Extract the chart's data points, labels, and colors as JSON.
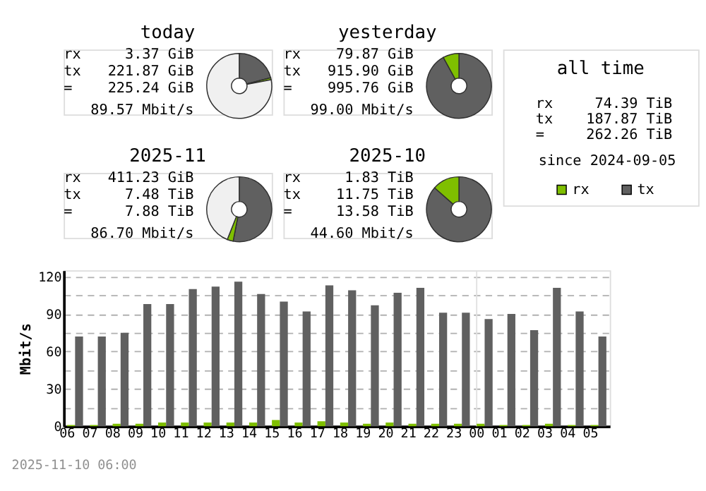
{
  "chart_data": [
    {
      "type": "donut",
      "title": "today",
      "categories": [
        null,
        null,
        null
      ],
      "values": [
        21,
        1,
        78
      ],
      "colors": [
        "#606060",
        "#7fbf00",
        "#f0f0f0"
      ],
      "annotations": [
        "rx",
        "3.37 GiB",
        "tx",
        "221.87 GiB",
        "=",
        "225.24 GiB",
        "89.57 Mbit/s"
      ]
    },
    {
      "type": "donut",
      "title": "2025-11",
      "categories": [
        null,
        null,
        null
      ],
      "values": [
        53,
        3,
        44
      ],
      "colors": [
        "#606060",
        "#7fbf00",
        "#f0f0f0"
      ],
      "annotations": [
        "rx",
        "411.23 GiB",
        "tx",
        "7.48 TiB",
        "=",
        "7.88 TiB",
        "86.70 Mbit/s"
      ]
    },
    {
      "type": "donut",
      "title": "yesterday",
      "categories": [
        null,
        null
      ],
      "values": [
        92,
        8
      ],
      "colors": [
        "#606060",
        "#7fbf00"
      ],
      "annotations": [
        "rx",
        "79.87 GiB",
        "tx",
        "915.90 GiB",
        "=",
        "995.76 GiB",
        "99.00 Mbit/s"
      ]
    },
    {
      "type": "donut",
      "title": "2025-10",
      "categories": [
        null,
        null
      ],
      "values": [
        86.5,
        13.5
      ],
      "colors": [
        "#606060",
        "#7fbf00"
      ],
      "annotations": [
        "rx",
        "1.83 TiB",
        "tx",
        "11.75 TiB",
        "=",
        "13.58 TiB",
        "44.60 Mbit/s"
      ]
    },
    {
      "type": "other",
      "title": "all time",
      "annotations": [
        "rx",
        "74.39 TiB",
        "tx",
        "187.87 TiB",
        "=",
        "262.26 TiB",
        "since 2024-09-05"
      ]
    },
    {
      "type": "bar",
      "ylabel": "Mbit/s",
      "categories": [
        "06",
        "07",
        "08",
        "09",
        "10",
        "11",
        "12",
        "13",
        "14",
        "15",
        "16",
        "17",
        "18",
        "19",
        "20",
        "21",
        "22",
        "23",
        "00",
        "01",
        "02",
        "03",
        "04",
        "05"
      ],
      "series": [
        {
          "name": "rx",
          "color": "#7fbf00",
          "values": [
            1,
            1,
            2,
            2,
            3,
            3,
            3,
            3,
            3,
            5,
            3,
            4,
            3,
            2,
            3,
            2,
            2,
            2,
            2,
            1,
            1,
            2,
            1,
            1
          ]
        },
        {
          "name": "tx",
          "color": "#606060",
          "values": [
            72,
            72,
            75,
            98,
            98,
            110,
            112,
            116,
            106,
            100,
            92,
            113,
            109,
            97,
            107,
            111,
            91,
            91,
            86,
            90,
            77,
            111,
            92,
            72
          ]
        }
      ],
      "ylim": [
        0,
        125
      ],
      "yticks": [
        0,
        {
          "value": 15,
          "label": null
        },
        30,
        {
          "value": 45,
          "label": null
        },
        60,
        {
          "value": 75,
          "label": null
        },
        90,
        {
          "value": 105,
          "label": null
        },
        120
      ],
      "grid": "y",
      "line_style": "dashed",
      "legend": "top right",
      "ref_lines": [
        {
          "axis": "x",
          "value": "00",
          "color": "#e0e0e0"
        }
      ],
      "annotations": [
        "2025-11-10 06:00"
      ]
    }
  ]
}
